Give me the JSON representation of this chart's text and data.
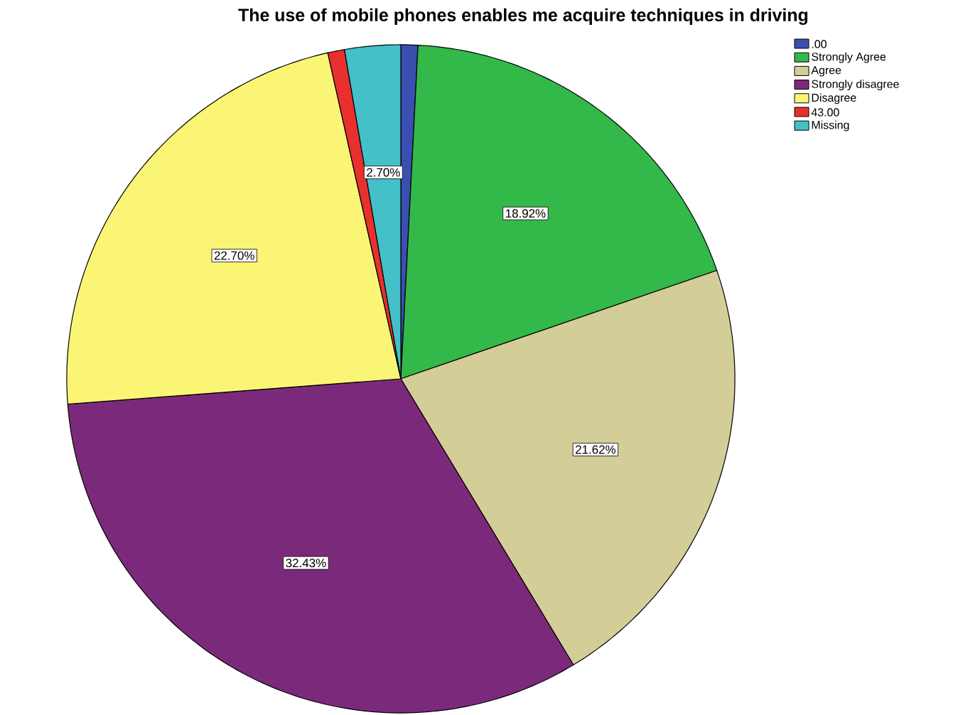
{
  "chart_data": {
    "type": "pie",
    "title": "The use of mobile phones enables me acquire techniques in driving",
    "categories": [
      ".00",
      "Strongly Agree",
      "Agree",
      "Strongly disagree",
      "Disagree",
      "43.00",
      "Missing"
    ],
    "values": [
      0.82,
      18.92,
      21.62,
      32.43,
      22.7,
      0.81,
      2.7
    ],
    "value_labels": [
      null,
      "18.92%",
      "21.62%",
      "32.43%",
      "22.70%",
      null,
      "2.70%"
    ],
    "colors": [
      "#3a4fb0",
      "#33b84a",
      "#d3cd98",
      "#7b2a7b",
      "#fbf575",
      "#e8302e",
      "#43c0c8"
    ],
    "legend": "top right"
  }
}
